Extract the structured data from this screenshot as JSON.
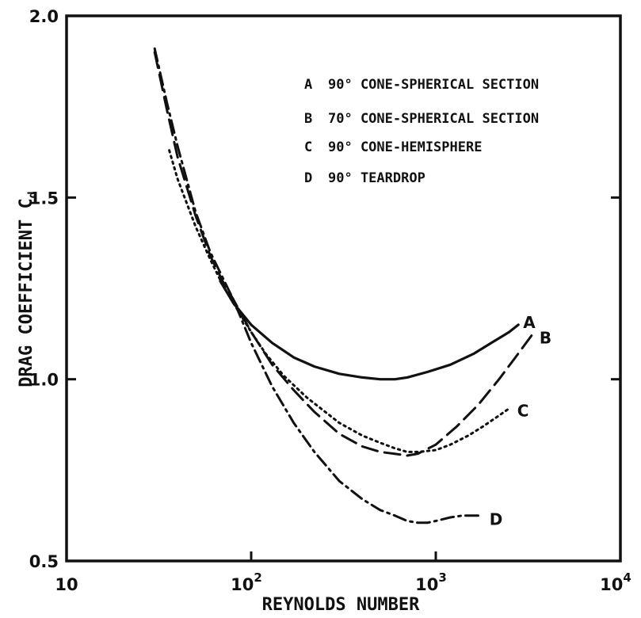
{
  "chart_data": {
    "type": "line",
    "xscale": "log",
    "xlim": [
      10,
      10000
    ],
    "ylim": [
      0.5,
      2.0
    ],
    "xlabel": "REYNOLDS NUMBER",
    "ylabel": "DRAG COEFFICIENT C_d",
    "ylabel_main": "DRAG COEFFICIENT C",
    "ylabel_sub": "d",
    "x_ticks": [
      {
        "value": 10,
        "base": "10",
        "exp": ""
      },
      {
        "value": 100,
        "base": "10",
        "exp": "2"
      },
      {
        "value": 1000,
        "base": "10",
        "exp": "3"
      },
      {
        "value": 10000,
        "base": "10",
        "exp": "4"
      }
    ],
    "y_ticks": [
      {
        "value": 0.5,
        "label": "0.5"
      },
      {
        "value": 1.0,
        "label": "1.0"
      },
      {
        "value": 1.5,
        "label": "1.5"
      },
      {
        "value": 2.0,
        "label": "2.0"
      }
    ],
    "legend": [
      {
        "key": "A",
        "text": "90° CONE-SPHERICAL SECTION"
      },
      {
        "key": "B",
        "text": "70° CONE-SPHERICAL SECTION"
      },
      {
        "key": "C",
        "text": "90° CONE-HEMISPHERE"
      },
      {
        "key": "D",
        "text": "90° TEARDROP"
      }
    ],
    "series": [
      {
        "name": "A",
        "style": "solid",
        "x": [
          68,
          80,
          100,
          130,
          170,
          220,
          300,
          400,
          500,
          600,
          700,
          900,
          1200,
          1600,
          2000,
          2500,
          2800
        ],
        "y": [
          1.27,
          1.21,
          1.15,
          1.1,
          1.06,
          1.035,
          1.015,
          1.005,
          1.0,
          1.0,
          1.005,
          1.02,
          1.04,
          1.07,
          1.1,
          1.13,
          1.15
        ]
      },
      {
        "name": "B",
        "style": "dashed",
        "x": [
          30,
          35,
          40,
          50,
          60,
          70,
          80,
          100,
          130,
          170,
          220,
          300,
          400,
          500,
          600,
          700,
          800,
          1000,
          1300,
          1700,
          2200,
          2700,
          3300
        ],
        "y": [
          1.9,
          1.74,
          1.61,
          1.45,
          1.34,
          1.27,
          1.22,
          1.13,
          1.04,
          0.97,
          0.91,
          0.85,
          0.815,
          0.8,
          0.795,
          0.79,
          0.795,
          0.82,
          0.87,
          0.93,
          1.0,
          1.06,
          1.12
        ]
      },
      {
        "name": "C",
        "style": "dotted",
        "x": [
          36,
          40,
          50,
          60,
          70,
          80,
          100,
          120,
          150,
          200,
          300,
          400,
          500,
          600,
          700,
          800,
          1000,
          1200,
          1500,
          1800,
          2200,
          2500
        ],
        "y": [
          1.63,
          1.55,
          1.42,
          1.33,
          1.26,
          1.21,
          1.13,
          1.07,
          1.01,
          0.95,
          0.88,
          0.845,
          0.825,
          0.81,
          0.8,
          0.8,
          0.805,
          0.82,
          0.845,
          0.87,
          0.9,
          0.92
        ]
      },
      {
        "name": "D",
        "style": "dashdot",
        "x": [
          30,
          35,
          40,
          50,
          60,
          70,
          80,
          100,
          130,
          170,
          220,
          300,
          400,
          500,
          600,
          700,
          800,
          900,
          1000,
          1200,
          1400,
          1700
        ],
        "y": [
          1.91,
          1.76,
          1.64,
          1.46,
          1.35,
          1.28,
          1.22,
          1.1,
          0.98,
          0.88,
          0.8,
          0.72,
          0.67,
          0.64,
          0.625,
          0.61,
          0.605,
          0.605,
          0.61,
          0.62,
          0.625,
          0.625
        ]
      }
    ],
    "curve_labels": [
      "A",
      "B",
      "C",
      "D"
    ],
    "grid": false,
    "legend_position": "top-right"
  }
}
